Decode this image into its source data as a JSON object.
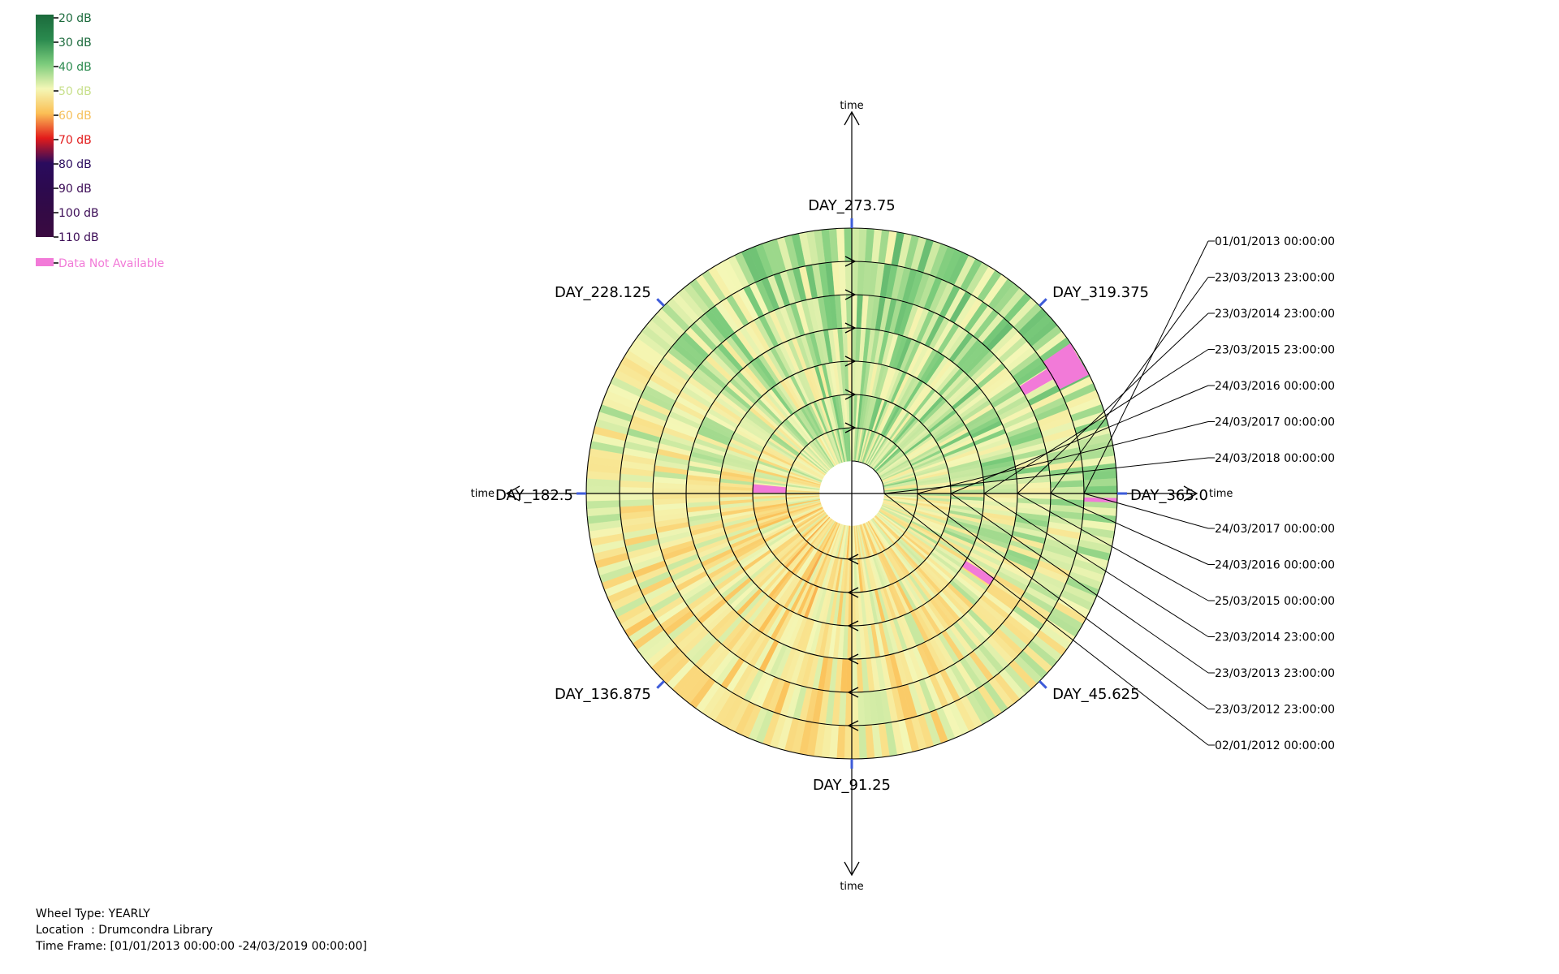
{
  "legend": {
    "items": [
      {
        "label": "20 dB",
        "color": "#1b6a3c",
        "text_color": "#1b6a3c"
      },
      {
        "label": "30 dB",
        "color": "#2a8a4e",
        "text_color": "#1b6a3c"
      },
      {
        "label": "40 dB",
        "color": "#7ccc7c",
        "text_color": "#2a8a4e"
      },
      {
        "label": "50 dB",
        "color": "#f4f7b6",
        "text_color": "#c8e08c"
      },
      {
        "label": "60 dB",
        "color": "#fbbf55",
        "text_color": "#f6c05a"
      },
      {
        "label": "70 dB",
        "color": "#e21b1b",
        "text_color": "#e21b1b"
      },
      {
        "label": "80 dB",
        "color": "#2a0b5e",
        "text_color": "#2a0b5e"
      },
      {
        "label": "90 dB",
        "color": "#2c0a4f",
        "text_color": "#3a0a55"
      },
      {
        "label": "100 dB",
        "color": "#330a45",
        "text_color": "#3a0a55"
      },
      {
        "label": "110 dB",
        "color": "#3a0a40",
        "text_color": "#3a0a55"
      }
    ],
    "na_label": "Data Not Available",
    "na_color": "#f27ad8"
  },
  "axes": {
    "time_label": "time"
  },
  "chart_data": {
    "type": "radial-heatmap",
    "wheel_type": "YEARLY",
    "angular_axis": {
      "unit": "day of year",
      "ticks": [
        "DAY_365.0",
        "DAY_319.375",
        "DAY_273.75",
        "DAY_228.125",
        "DAY_182.5",
        "DAY_136.875",
        "DAY_91.25",
        "DAY_45.625"
      ]
    },
    "rings": [
      {
        "start": "02/01/2012 00:00:00",
        "end": "23/03/2012 23:00:00"
      },
      {
        "start": "23/03/2012 23:00:00",
        "end": "23/03/2013 23:00:00"
      },
      {
        "start": "23/03/2013 23:00:00",
        "end": "23/03/2014 23:00:00"
      },
      {
        "start": "23/03/2014 23:00:00",
        "end": "25/03/2015 00:00:00"
      },
      {
        "start": "25/03/2015 00:00:00",
        "end": "24/03/2016 00:00:00"
      },
      {
        "start": "24/03/2016 00:00:00",
        "end": "24/03/2017 00:00:00"
      },
      {
        "start": "24/03/2017 00:00:00",
        "end": "24/03/2018 00:00:00"
      }
    ],
    "upper_callouts": [
      "01/01/2013 00:00:00",
      "23/03/2013 23:00:00",
      "23/03/2014 23:00:00",
      "23/03/2015 23:00:00",
      "24/03/2016 00:00:00",
      "24/03/2017 00:00:00",
      "24/03/2018 00:00:00"
    ],
    "lower_callouts": [
      "24/03/2017 00:00:00",
      "24/03/2016 00:00:00",
      "25/03/2015 00:00:00",
      "23/03/2014 23:00:00",
      "23/03/2013 23:00:00",
      "23/03/2012 23:00:00",
      "02/01/2012 00:00:00"
    ],
    "value_range_db": [
      20,
      110
    ],
    "dominant_level_db": [
      40,
      60
    ],
    "missing_data_days": [
      {
        "ring": 6,
        "day_start": 330,
        "day_end": 338
      },
      {
        "ring": 5,
        "day_start": 332,
        "day_end": 335
      },
      {
        "ring": 1,
        "day_start": 183,
        "day_end": 188
      },
      {
        "ring": 6,
        "day_start": 1,
        "day_end": 2
      },
      {
        "ring": 3,
        "day_start": 31,
        "day_end": 34
      }
    ]
  },
  "info": {
    "wheel_type": "Wheel Type: YEARLY",
    "location": "Location  : Drumcondra Library",
    "time_frame": "Time Frame: [01/01/2013 00:00:00 -24/03/2019 00:00:00]"
  }
}
